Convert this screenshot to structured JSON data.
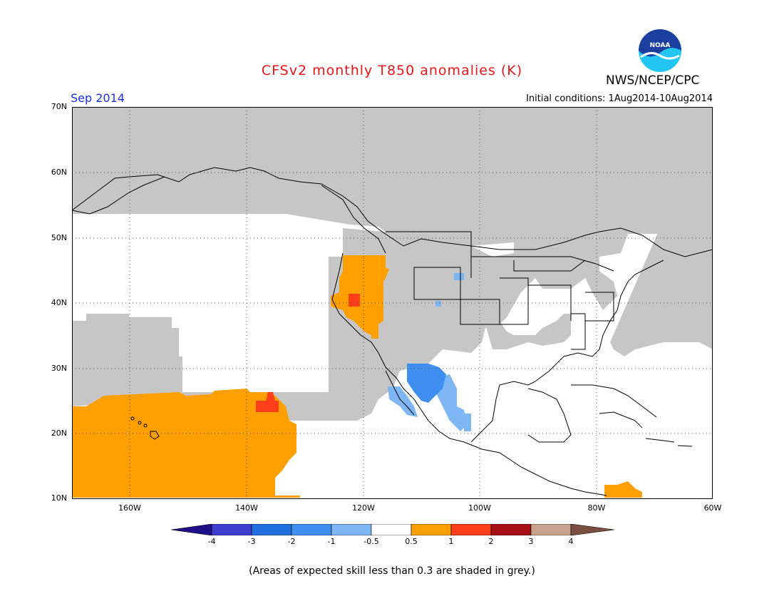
{
  "header": {
    "title": "CFSv2 monthly T850 anomalies (K)",
    "period": "Sep 2014",
    "organization": "NWS/NCEP/CPC",
    "logo_text": "NOAA",
    "initial_conditions": "Initial conditions: 1Aug2014-10Aug2014"
  },
  "map": {
    "lat_labels": [
      "70N",
      "60N",
      "50N",
      "40N",
      "30N",
      "20N",
      "10N"
    ],
    "lon_labels": [
      "160W",
      "140W",
      "120W",
      "100W",
      "80W",
      "60W"
    ],
    "extent": {
      "lon": [
        -171,
        -60
      ],
      "lat": [
        10,
        70
      ]
    },
    "projection": "lat-lon",
    "grid": "dotted"
  },
  "colorbar": {
    "labels": [
      "-4",
      "-3",
      "-2",
      "-1",
      "-0.5",
      "0.5",
      "1",
      "2",
      "3",
      "4"
    ],
    "colors": [
      "#1f0f8a",
      "#3f3fcf",
      "#1f6fdf",
      "#3f8ff1",
      "#7fb6f5",
      "#ffffff",
      "#ff9f00",
      "#ff3f1a",
      "#a50f15",
      "#c9a28d",
      "#7a4f3f"
    ]
  },
  "shading": {
    "low_skill_grey": "#c6c6c6",
    "ocean": "#ffffff",
    "warm_05_1": "#ff9f00",
    "warm_1_2": "#ff3f1a",
    "cool_m1_m05": "#7fb6f5",
    "cool_m2_m1": "#3f8ff1"
  },
  "footnote": "(Areas of expected skill less than 0.3 are shaded in grey.)"
}
